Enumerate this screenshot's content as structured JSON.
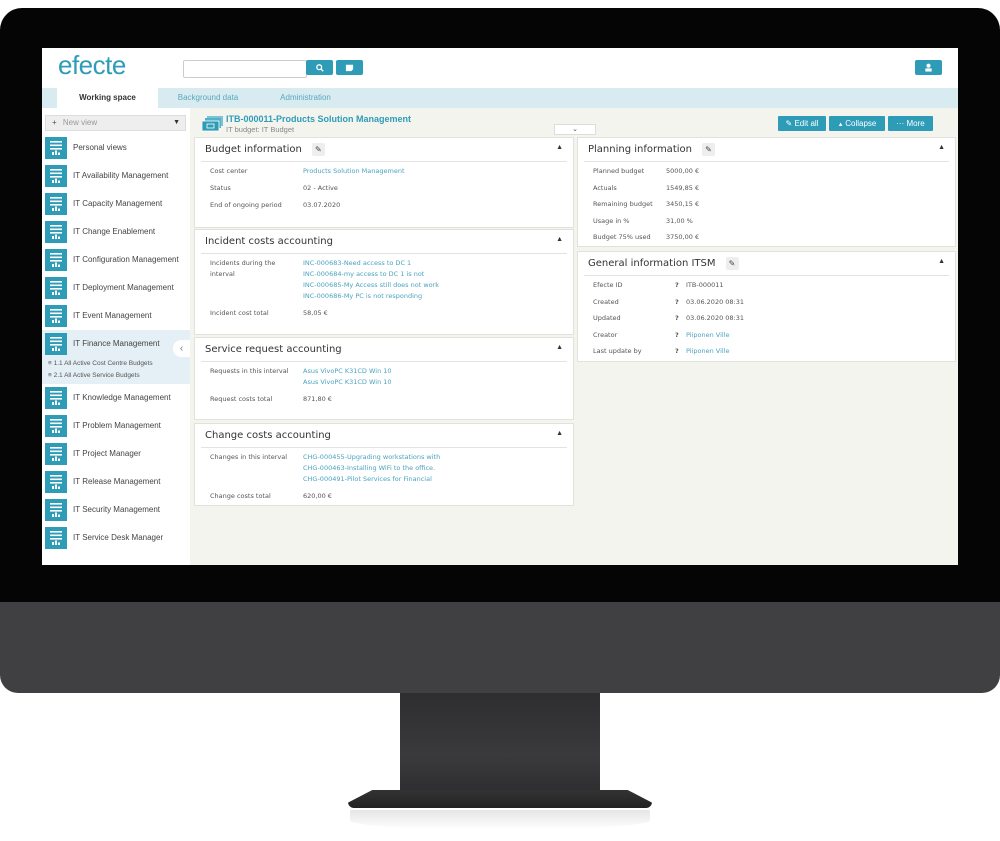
{
  "app": {
    "logo": "efecte",
    "accent": "#2e9cb7"
  },
  "header": {
    "search_placeholder": "",
    "icons": [
      "search-icon",
      "notes-icon",
      "user-icon"
    ]
  },
  "tabs": [
    {
      "label": "Working space",
      "active": true
    },
    {
      "label": "Background data",
      "active": false
    },
    {
      "label": "Administration",
      "active": false
    }
  ],
  "sidebar": {
    "new_view": "New view",
    "items": [
      {
        "label": "Personal views"
      },
      {
        "label": "IT Availability Management"
      },
      {
        "label": "IT Capacity Management"
      },
      {
        "label": "IT Change Enablement"
      },
      {
        "label": "IT Configuration Management"
      },
      {
        "label": "IT Deployment Management"
      },
      {
        "label": "IT Event Management"
      },
      {
        "label": "IT Finance Management",
        "active": true,
        "subitems": [
          "1.1 All Active Cost Centre Budgets",
          "2.1 All Active Service Budgets"
        ]
      },
      {
        "label": "IT Knowledge Management"
      },
      {
        "label": "IT Problem Management"
      },
      {
        "label": "IT Project Manager"
      },
      {
        "label": "IT Release Management"
      },
      {
        "label": "IT Security Management"
      },
      {
        "label": "IT Service Desk Manager"
      }
    ]
  },
  "record": {
    "title": "ITB-000011-Products Solution Management",
    "subtitle": "IT budget: IT Budget",
    "actions": {
      "edit_all": "Edit all",
      "collapse": "Collapse",
      "more": "More"
    }
  },
  "panels": {
    "budget": {
      "title": "Budget information",
      "fields": [
        {
          "label": "Cost center",
          "values": [
            "Products Solution Management"
          ],
          "link": true
        },
        {
          "label": "Status",
          "values": [
            "02 - Active"
          ]
        },
        {
          "label": "End of ongoing period",
          "values": [
            "03.07.2020"
          ]
        }
      ]
    },
    "incident": {
      "title": "Incident costs accounting",
      "fields": [
        {
          "label": "Incidents during the interval",
          "values": [
            "INC-000683-Need access to DC 1",
            "INC-000684-my access to DC 1 is not",
            "INC-000685-My Access still does not work",
            "INC-000686-My PC is not responding"
          ],
          "link": true
        },
        {
          "label": "Incident cost total",
          "values": [
            "58,05 €"
          ]
        }
      ]
    },
    "service": {
      "title": "Service request accounting",
      "fields": [
        {
          "label": "Requests in this interval",
          "values": [
            "Asus VivoPC K31CD Win 10",
            "Asus VivoPC K31CD Win 10"
          ],
          "link": true
        },
        {
          "label": "Request costs total",
          "values": [
            "871,80 €"
          ]
        }
      ]
    },
    "change": {
      "title": "Change costs accounting",
      "fields": [
        {
          "label": "Changes in this interval",
          "values": [
            "CHG-000455-Upgrading workstations with",
            "CHG-000463-Installing WiFi to the office.",
            "CHG-000491-Pilot Services for Financial"
          ],
          "link": true
        },
        {
          "label": "Change costs total",
          "values": [
            "620,00 €"
          ]
        }
      ]
    },
    "planning": {
      "title": "Planning information",
      "fields": [
        {
          "label": "Planned budget",
          "values": [
            "5000,00 €"
          ]
        },
        {
          "label": "Actuals",
          "values": [
            "1549,85 €"
          ]
        },
        {
          "label": "Remaining budget",
          "values": [
            "3450,15 €"
          ]
        },
        {
          "label": "Usage in %",
          "values": [
            "31,00 %"
          ]
        },
        {
          "label": "Budget 75% used",
          "values": [
            "3750,00 €"
          ]
        }
      ]
    },
    "general": {
      "title": "General information ITSM",
      "fields": [
        {
          "label": "Efecte ID",
          "values": [
            "ITB-000011"
          ],
          "help": "?"
        },
        {
          "label": "Created",
          "values": [
            "03.06.2020 08:31"
          ],
          "help": "?"
        },
        {
          "label": "Updated",
          "values": [
            "03.06.2020 08:31"
          ],
          "help": "?"
        },
        {
          "label": "Creator",
          "values": [
            "Piiponen Ville"
          ],
          "help": "?",
          "link": true
        },
        {
          "label": "Last update by",
          "values": [
            "Piiponen Ville"
          ],
          "help": "?",
          "link": true
        }
      ]
    }
  }
}
